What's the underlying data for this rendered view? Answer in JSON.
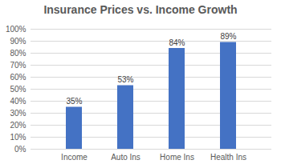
{
  "chart_data": {
    "type": "bar",
    "title": "Insurance Prices vs. Income Growth",
    "categories": [
      "Income",
      "Auto Ins",
      "Home Ins",
      "Health Ins"
    ],
    "values": [
      35,
      53,
      84,
      89
    ],
    "value_labels": [
      "35%",
      "53%",
      "84%",
      "89%"
    ],
    "data_labels": true,
    "color": "#4472c4",
    "ylim": [
      0,
      100
    ],
    "yticks": [
      {
        "value": 0,
        "label": "0%"
      },
      {
        "value": 10,
        "label": "10%"
      },
      {
        "value": 20,
        "label": "20%"
      },
      {
        "value": 30,
        "label": "30%"
      },
      {
        "value": 40,
        "label": "40%"
      },
      {
        "value": 50,
        "label": "50%"
      },
      {
        "value": 60,
        "label": "60%"
      },
      {
        "value": 70,
        "label": "70%"
      },
      {
        "value": 80,
        "label": "80%"
      },
      {
        "value": 90,
        "label": "90%"
      },
      {
        "value": 100,
        "label": "100%"
      }
    ],
    "grid": true
  }
}
